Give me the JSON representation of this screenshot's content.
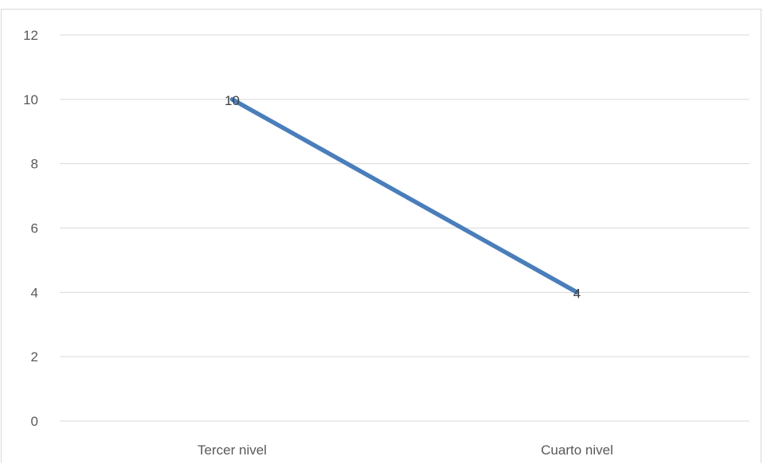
{
  "chart_data": {
    "type": "line",
    "categories": [
      "Tercer nivel",
      "Cuarto nivel"
    ],
    "series": [
      {
        "values": [
          10,
          4
        ],
        "color": "#4a7ebb"
      }
    ],
    "ylim": [
      0,
      12
    ],
    "yticks": [
      0,
      2,
      4,
      6,
      8,
      10,
      12
    ],
    "grid": true,
    "data_labels": true,
    "legend": "none"
  }
}
